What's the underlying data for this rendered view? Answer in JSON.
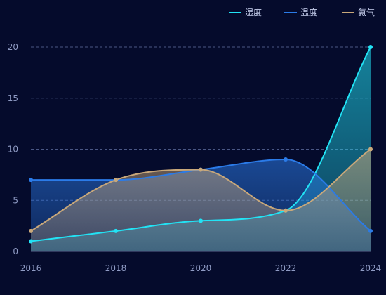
{
  "chart_data": {
    "type": "area",
    "x": [
      "2016",
      "2018",
      "2020",
      "2022",
      "2024"
    ],
    "ylim": [
      0,
      20
    ],
    "yticks": [
      0,
      5,
      10,
      15,
      20
    ],
    "grid": "horizontal dashed",
    "legend_position": "top-right",
    "series": [
      {
        "name": "湿度",
        "values": [
          1,
          2,
          3,
          4,
          20
        ],
        "color": "#22e3f5"
      },
      {
        "name": "温度",
        "values": [
          7,
          7,
          8,
          9,
          2
        ],
        "color": "#2b7be8"
      },
      {
        "name": "氨气",
        "values": [
          2,
          7,
          8,
          4,
          10
        ],
        "color": "#c9a87a"
      }
    ]
  },
  "colors": {
    "background": "#050b2c",
    "grid": "#4a5785",
    "axis": "#5b6790",
    "tick_text": "#8f9bc4"
  }
}
